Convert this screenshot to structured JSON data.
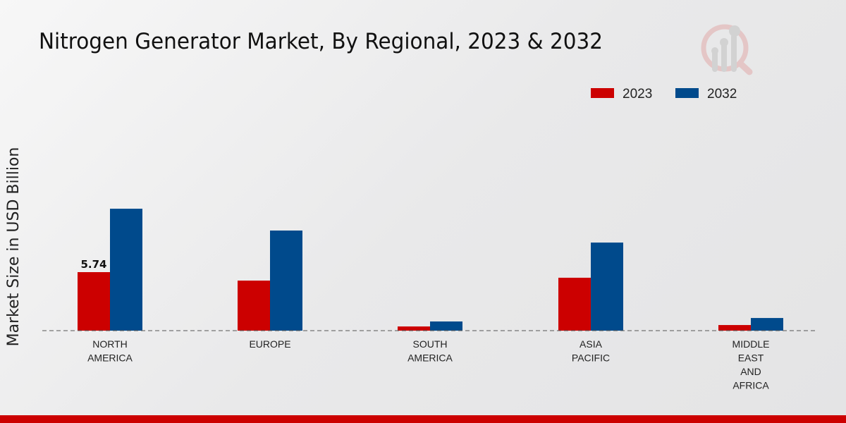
{
  "chart_data": {
    "type": "bar",
    "title": "Nitrogen Generator Market, By Regional, 2023 & 2032",
    "xlabel": "",
    "ylabel": "Market Size in USD Billion",
    "categories": [
      [
        "NORTH",
        "AMERICA"
      ],
      [
        "EUROPE"
      ],
      [
        "SOUTH",
        "AMERICA"
      ],
      [
        "ASIA",
        "PACIFIC"
      ],
      [
        "MIDDLE",
        "EAST",
        "AND",
        "AFRICA"
      ]
    ],
    "series": [
      {
        "name": "2023",
        "color": "#cc0000",
        "values": [
          5.74,
          4.91,
          0.41,
          5.19,
          0.55
        ]
      },
      {
        "name": "2032",
        "color": "#004a8c",
        "values": [
          11.96,
          9.82,
          0.9,
          8.64,
          1.24
        ]
      }
    ],
    "data_labels": [
      {
        "series": 0,
        "index": 0,
        "text": "5.74"
      }
    ],
    "legend_position": "top-right",
    "grid": false
  }
}
